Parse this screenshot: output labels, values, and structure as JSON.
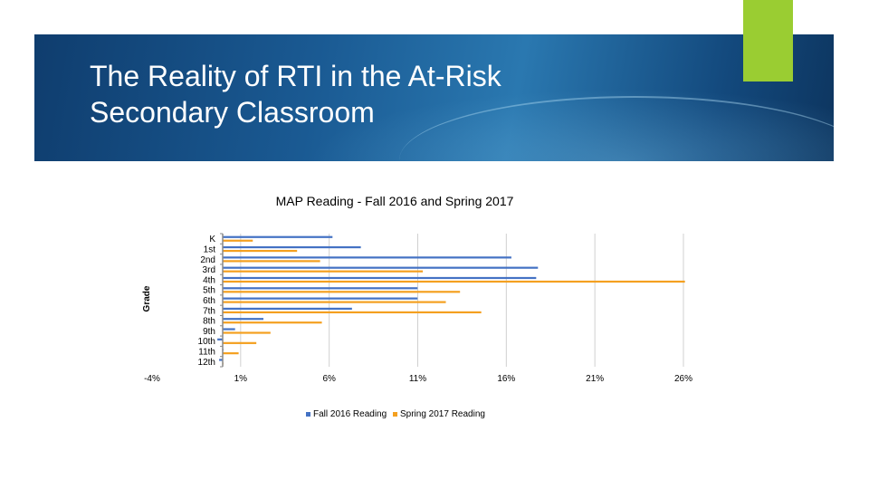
{
  "slide": {
    "title_line1": "The Reality of RTI in the At-Risk",
    "title_line2": "Secondary Classroom",
    "banner_color": "#1a5a93",
    "accent_color": "#9acd32"
  },
  "chart_data": {
    "type": "bar",
    "orientation": "horizontal",
    "title": "MAP Reading - Fall 2016 and Spring 2017",
    "ylabel": "Grade",
    "xlabel": "",
    "categories": [
      "K",
      "1st",
      "2nd",
      "3rd",
      "4th",
      "5th",
      "6th",
      "7th",
      "8th",
      "9th",
      "10th",
      "11th",
      "12th"
    ],
    "series": [
      {
        "name": "Fall 2016 Reading",
        "color": "#4472c4",
        "values": [
          6.2,
          7.8,
          16.3,
          17.8,
          17.7,
          11.0,
          11.0,
          7.3,
          2.3,
          0.7,
          -0.3,
          0.0,
          -0.2
        ]
      },
      {
        "name": "Spring 2017 Reading",
        "color": "#f4a020",
        "values": [
          1.7,
          4.2,
          5.5,
          11.3,
          26.1,
          13.4,
          12.6,
          14.6,
          5.6,
          2.7,
          1.9,
          0.9,
          0.0
        ]
      }
    ],
    "xticks": [
      "-4%",
      "1%",
      "6%",
      "11%",
      "16%",
      "21%",
      "26%"
    ],
    "xlim": [
      -4,
      26
    ],
    "grid": "vertical",
    "legend_position": "bottom"
  }
}
